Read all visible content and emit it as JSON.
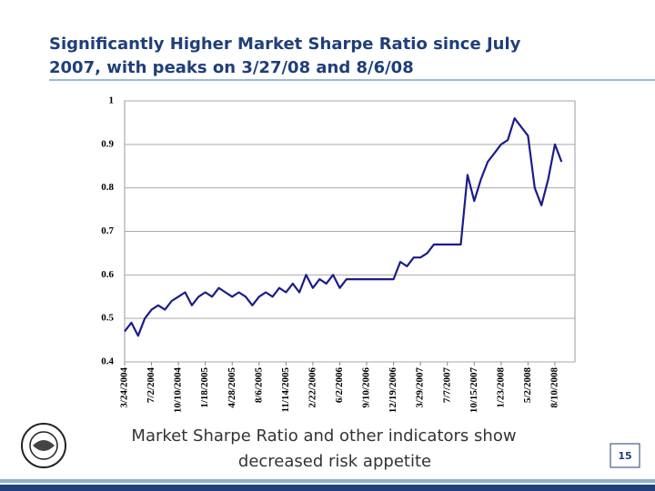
{
  "slide": {
    "title": [
      "Significantly Higher Market Sharpe Ratio since July",
      "2007, with peaks on 3/27/08 and 8/6/08"
    ],
    "caption": [
      "Market Sharpe Ratio and other indicators show",
      "decreased risk appetite"
    ],
    "page_number": 15
  },
  "chart_data": {
    "type": "line",
    "categories": [
      "3/24/2004",
      null,
      null,
      null,
      "7/2/2004",
      null,
      null,
      null,
      "10/10/2004",
      null,
      null,
      null,
      "1/18/2005",
      null,
      null,
      null,
      "4/28/2005",
      null,
      null,
      null,
      "8/6/2005",
      null,
      null,
      null,
      "11/14/2005",
      null,
      null,
      null,
      "2/22/2006",
      null,
      null,
      null,
      "6/2/2006",
      null,
      null,
      null,
      "9/10/2006",
      null,
      null,
      null,
      "12/19/2006",
      null,
      null,
      null,
      "3/29/2007",
      null,
      null,
      null,
      "7/7/2007",
      null,
      null,
      null,
      "10/15/2007",
      null,
      null,
      null,
      "1/23/2008",
      null,
      null,
      null,
      "5/2/2008",
      null,
      null,
      null,
      "8/10/2008",
      null
    ],
    "values": [
      0.47,
      0.49,
      0.46,
      0.5,
      0.52,
      0.53,
      0.52,
      0.54,
      0.55,
      0.56,
      0.53,
      0.55,
      0.56,
      0.55,
      0.57,
      0.56,
      0.55,
      0.56,
      0.55,
      0.53,
      0.55,
      0.56,
      0.55,
      0.57,
      0.56,
      0.58,
      0.56,
      0.6,
      0.57,
      0.59,
      0.58,
      0.6,
      0.57,
      0.59,
      0.59,
      0.59,
      0.59,
      0.59,
      0.59,
      0.59,
      0.59,
      0.63,
      0.62,
      0.64,
      0.64,
      0.65,
      0.67,
      0.67,
      0.67,
      0.67,
      0.67,
      0.83,
      0.77,
      0.82,
      0.86,
      0.88,
      0.9,
      0.91,
      0.96,
      0.94,
      0.92,
      0.8,
      0.76,
      0.82,
      0.9,
      0.86
    ],
    "color": "#1c1c8a",
    "ylim": [
      0.4,
      1
    ],
    "yticks": [
      0.4,
      0.5,
      0.6,
      0.7,
      0.8,
      0.9,
      1
    ],
    "grid": true
  }
}
